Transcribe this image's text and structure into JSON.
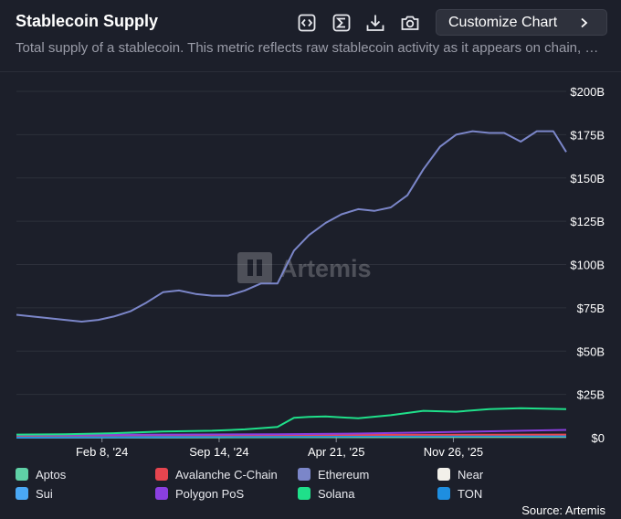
{
  "header": {
    "title": "Stablecoin Supply",
    "subtitle": "Total supply of a stablecoin. This metric reflects raw stablecoin activity as it appears on chain, without any adjustments or filtering.",
    "customize_label": "Customize Chart",
    "tools": [
      "embed-icon",
      "sigma-icon",
      "download-icon",
      "camera-icon"
    ]
  },
  "watermark": "Artemis",
  "source": "Source: Artemis",
  "chart_data": {
    "type": "line",
    "x_range": [
      "2023-09-01",
      "2026-06-25"
    ],
    "ylim": [
      0,
      200
    ],
    "y_ticks": [
      0,
      25,
      50,
      75,
      100,
      125,
      150,
      175,
      200
    ],
    "y_tick_labels": [
      "$0",
      "$25B",
      "$50B",
      "$75B",
      "$100B",
      "$125B",
      "$150B",
      "$175B",
      "$200B"
    ],
    "x_ticks": [
      "2024-02-08",
      "2024-09-14",
      "2025-04-21",
      "2025-11-26"
    ],
    "x_tick_labels": [
      "Feb 8, '24",
      "Sep 14, '24",
      "Apr 21, '25",
      "Nov 26, '25"
    ],
    "grid": true,
    "legend_position": "bottom",
    "series": [
      {
        "name": "Aptos",
        "color": "#5fd0a6",
        "x": [
          "2023-09-01",
          "2024-06-01",
          "2025-06-01",
          "2026-06-25"
        ],
        "values": [
          0.1,
          0.1,
          0.3,
          0.6
        ]
      },
      {
        "name": "Avalanche C-Chain",
        "color": "#e5454f",
        "x": [
          "2023-09-01",
          "2024-06-01",
          "2025-06-01",
          "2026-06-25"
        ],
        "values": [
          1.2,
          1.4,
          1.6,
          1.8
        ]
      },
      {
        "name": "Ethereum",
        "color": "#7b86c9",
        "x": [
          "2023-09-01",
          "2023-10-01",
          "2023-11-01",
          "2023-12-01",
          "2024-01-01",
          "2024-02-01",
          "2024-03-01",
          "2024-04-01",
          "2024-05-01",
          "2024-06-01",
          "2024-07-01",
          "2024-08-01",
          "2024-09-01",
          "2024-10-01",
          "2024-11-01",
          "2024-12-01",
          "2025-01-01",
          "2025-02-01",
          "2025-03-01",
          "2025-04-01",
          "2025-05-01",
          "2025-06-01",
          "2025-07-01",
          "2025-08-01",
          "2025-09-01",
          "2025-10-01",
          "2025-11-01",
          "2025-12-01",
          "2026-01-01",
          "2026-02-01",
          "2026-03-01",
          "2026-04-01",
          "2026-05-01",
          "2026-06-01",
          "2026-06-25"
        ],
        "values": [
          71,
          70,
          69,
          68,
          67,
          68,
          70,
          73,
          78,
          84,
          85,
          83,
          82,
          82,
          85,
          89,
          89,
          108,
          117,
          124,
          129,
          132,
          131,
          133,
          140,
          155,
          168,
          175,
          177,
          176,
          176,
          171,
          177,
          177,
          165
        ]
      },
      {
        "name": "Near",
        "color": "#f2f0ea",
        "x": [
          "2023-09-01",
          "2024-06-01",
          "2025-06-01",
          "2026-06-25"
        ],
        "values": [
          0.1,
          0.2,
          0.4,
          0.8
        ]
      },
      {
        "name": "Sui",
        "color": "#4aa8f5",
        "x": [
          "2023-09-01",
          "2024-06-01",
          "2025-06-01",
          "2026-06-25"
        ],
        "values": [
          0.1,
          0.4,
          1.2,
          1.0
        ]
      },
      {
        "name": "Polygon PoS",
        "color": "#8b3fe0",
        "x": [
          "2023-09-01",
          "2024-06-01",
          "2025-01-01",
          "2025-06-01",
          "2026-01-01",
          "2026-06-25"
        ],
        "values": [
          1.6,
          1.8,
          2.0,
          2.4,
          3.5,
          4.5
        ]
      },
      {
        "name": "Solana",
        "color": "#1fe08a",
        "x": [
          "2023-09-01",
          "2023-12-01",
          "2024-03-01",
          "2024-06-01",
          "2024-09-01",
          "2024-11-01",
          "2024-12-01",
          "2025-01-01",
          "2025-02-01",
          "2025-03-01",
          "2025-04-01",
          "2025-06-01",
          "2025-08-01",
          "2025-10-01",
          "2025-12-01",
          "2026-02-01",
          "2026-04-01",
          "2026-06-25"
        ],
        "values": [
          1.8,
          2.0,
          2.6,
          3.6,
          4.0,
          4.8,
          5.5,
          6.2,
          11.5,
          12.0,
          12.3,
          11.2,
          13.0,
          15.5,
          15.0,
          16.5,
          17.0,
          16.5
        ]
      },
      {
        "name": "TON",
        "color": "#1e8ee0",
        "x": [
          "2023-09-01",
          "2024-06-01",
          "2025-06-01",
          "2026-06-25"
        ],
        "values": [
          0.1,
          0.6,
          0.9,
          1.1
        ]
      }
    ]
  }
}
